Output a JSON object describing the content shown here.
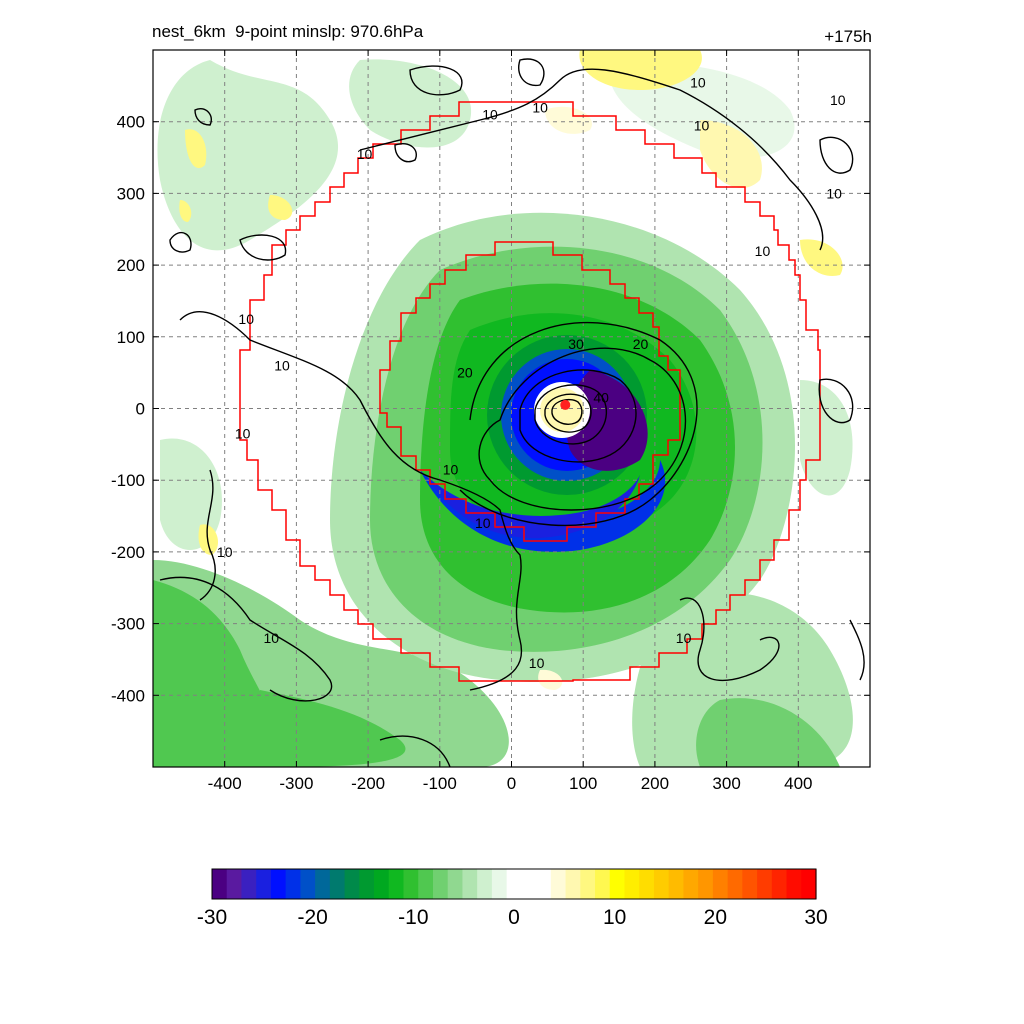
{
  "title": {
    "left": "nest_6km  9-point minslp: 970.6hPa",
    "right": "+175h"
  },
  "chart_data": {
    "type": "heatmap",
    "x_ticks": [
      -400,
      -300,
      -200,
      -100,
      0,
      100,
      200,
      300,
      400
    ],
    "y_ticks": [
      400,
      300,
      200,
      100,
      0,
      -100,
      -200,
      -300,
      -400
    ],
    "xlim": [
      -500,
      500
    ],
    "ylim": [
      -500,
      500
    ],
    "grid": true,
    "center_marker": {
      "x": 75,
      "y": 5,
      "color": "#ff2020"
    },
    "contour_labels": [
      {
        "text": "10",
        "x": -320,
        "y": 60
      },
      {
        "text": "10",
        "x": -370,
        "y": 125
      },
      {
        "text": "10",
        "x": -375,
        "y": -35
      },
      {
        "text": "10",
        "x": -85,
        "y": -85
      },
      {
        "text": "10",
        "x": -40,
        "y": -160
      },
      {
        "text": "10",
        "x": 35,
        "y": -355
      },
      {
        "text": "10",
        "x": -335,
        "y": -320
      },
      {
        "text": "10",
        "x": -400,
        "y": -200
      },
      {
        "text": "10",
        "x": 240,
        "y": -320
      },
      {
        "text": "10",
        "x": -205,
        "y": 355
      },
      {
        "text": "10",
        "x": -30,
        "y": 410
      },
      {
        "text": "10",
        "x": 40,
        "y": 420
      },
      {
        "text": "10",
        "x": 265,
        "y": 395
      },
      {
        "text": "10",
        "x": 260,
        "y": 455
      },
      {
        "text": "10",
        "x": 350,
        "y": 220
      },
      {
        "text": "10",
        "x": 450,
        "y": 300
      },
      {
        "text": "10",
        "x": 455,
        "y": 430
      },
      {
        "text": "20",
        "x": -65,
        "y": 50
      },
      {
        "text": "20",
        "x": 180,
        "y": 90
      },
      {
        "text": "30",
        "x": 90,
        "y": 90
      },
      {
        "text": "40",
        "x": 125,
        "y": 15
      }
    ],
    "colorbar": {
      "ticks": [
        "-30",
        "-20",
        "-10",
        "0",
        "10",
        "20",
        "30"
      ],
      "min": -30,
      "max": 30,
      "colors": [
        "#4b0082",
        "#5a1aa0",
        "#3a20c0",
        "#1a20e0",
        "#0010ff",
        "#0030e8",
        "#0050c8",
        "#00689a",
        "#007a6e",
        "#008a4a",
        "#009a30",
        "#00a820",
        "#10b820",
        "#30c030",
        "#50c850",
        "#70d070",
        "#90d890",
        "#b0e4b0",
        "#cff0cf",
        "#e8f8e8",
        "#ffffff",
        "#ffffff",
        "#ffffff",
        "#fffbd8",
        "#fff8b0",
        "#fff880",
        "#fff850",
        "#ffff00",
        "#ffee00",
        "#ffdd00",
        "#ffcc00",
        "#ffbb00",
        "#ffa800",
        "#ff9600",
        "#ff8000",
        "#ff6a00",
        "#ff5400",
        "#ff3c00",
        "#ff2400",
        "#ff0c00",
        "#ff0000"
      ]
    }
  }
}
